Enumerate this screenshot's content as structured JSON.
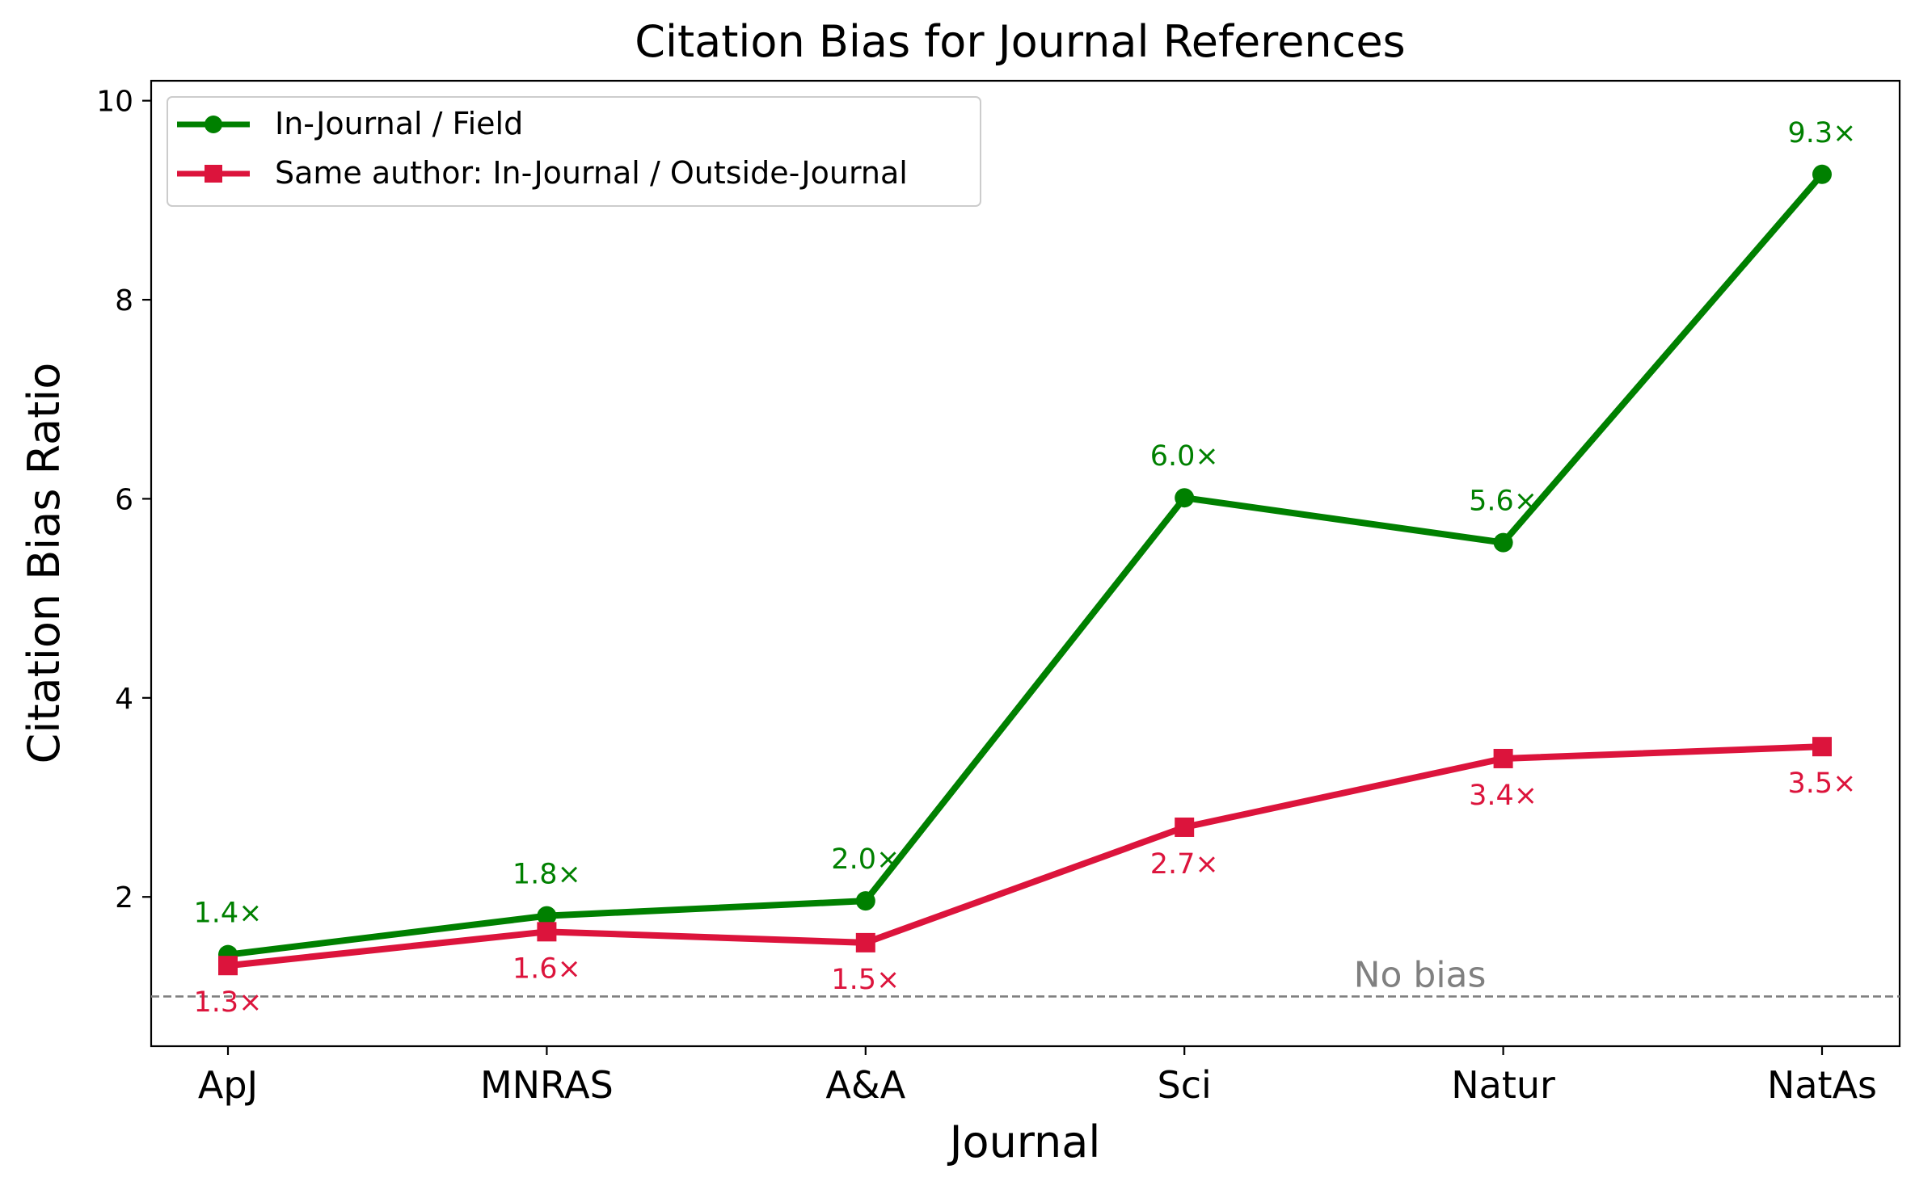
{
  "chart_data": {
    "type": "line",
    "title": "Citation Bias for Journal References",
    "xlabel": "Journal",
    "ylabel": "Citation Bias Ratio",
    "categories": [
      "ApJ",
      "MNRAS",
      "A&A",
      "Sci",
      "Natur",
      "NatAs"
    ],
    "ylim": [
      0.5,
      10.2
    ],
    "yticks": [
      2,
      4,
      6,
      8,
      10
    ],
    "grid": false,
    "legend_position": "top-left",
    "series": [
      {
        "name": "In-Journal / Field",
        "color": "#008000",
        "marker": "circle",
        "values": [
          1.42,
          1.81,
          1.96,
          6.01,
          5.56,
          9.26
        ],
        "labels": [
          "1.4×",
          "1.8×",
          "2.0×",
          "6.0×",
          "5.6×",
          "9.3×"
        ],
        "label_position": "above"
      },
      {
        "name": "Same author: In-Journal / Outside-Journal",
        "color": "#dc143c",
        "marker": "square",
        "values": [
          1.31,
          1.65,
          1.54,
          2.7,
          3.39,
          3.51
        ],
        "labels": [
          "1.3×",
          "1.6×",
          "1.5×",
          "2.7×",
          "3.4×",
          "3.5×"
        ],
        "label_position": "below"
      }
    ],
    "reference_line": {
      "y": 1.0,
      "label": "No bias",
      "color": "#808080",
      "style": "dashed"
    }
  }
}
